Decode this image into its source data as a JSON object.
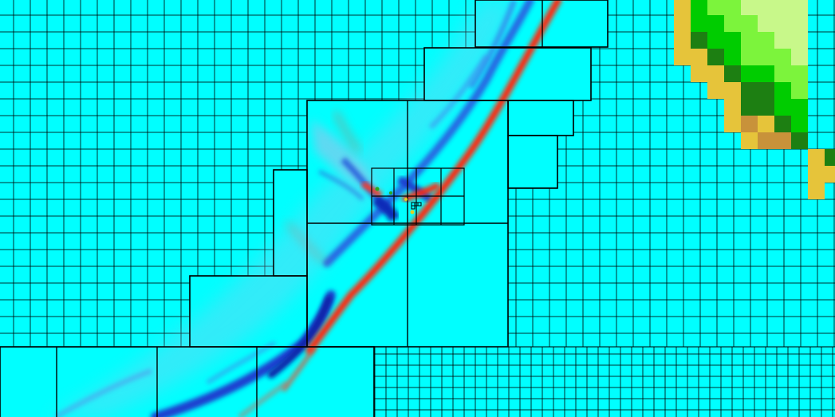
{
  "colors": {
    "water": "#00ffff",
    "grid_line": "#000000",
    "wave_crest": "#ff2a10",
    "wave_trough": "#0a3ad8",
    "land_dark": "#1d7f12",
    "land_mid": "#00cc00",
    "land_light": "#7cf43c",
    "land_pale": "#c8f88a",
    "shore_yellow": "#e6c43a",
    "shore_brown": "#c8923a"
  },
  "legend": {
    "shown": false
  },
  "layers": [
    "water-background",
    "coarse-grid",
    "wave-field",
    "refined-patches",
    "land-topography",
    "gauge-markers"
  ]
}
